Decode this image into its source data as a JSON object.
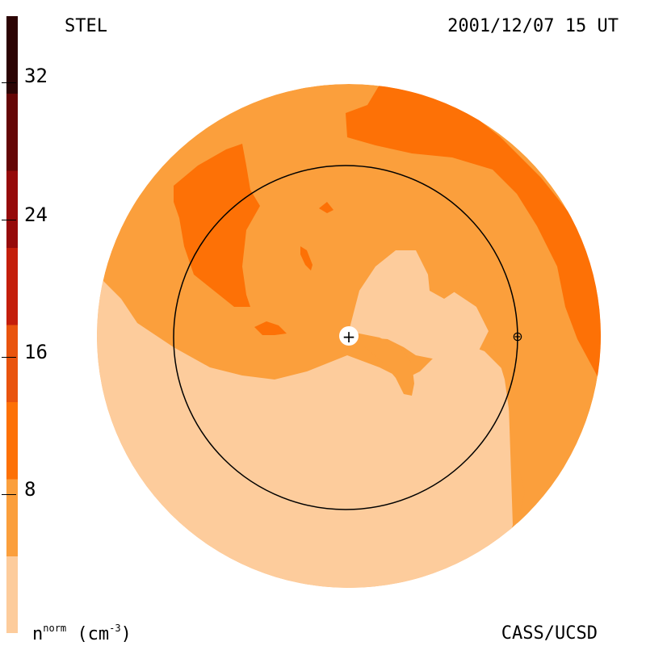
{
  "header": {
    "instrument": "STEL",
    "timestamp": "2001/12/07 15 UT"
  },
  "footer": {
    "credit": "CASS/UCSD",
    "unit_base": "n",
    "unit_sup": "norm",
    "unit_rest": " (cm",
    "unit_exp": "-3",
    "unit_close": ")"
  },
  "colorbar": {
    "ticks": [
      "32",
      "24",
      "16",
      "8"
    ],
    "colors": [
      "#fdcc9c",
      "#fb9f3c",
      "#fd7106",
      "#e9540e",
      "#c41e0b",
      "#960a0a",
      "#650606",
      "#2c0404"
    ]
  },
  "map": {
    "colors": {
      "level0": "#fdcc9c",
      "level1": "#fb9f3c",
      "level2": "#fd7106",
      "circle": "#000000"
    },
    "sun_symbol": "+",
    "earth_symbol": "⊕"
  }
}
